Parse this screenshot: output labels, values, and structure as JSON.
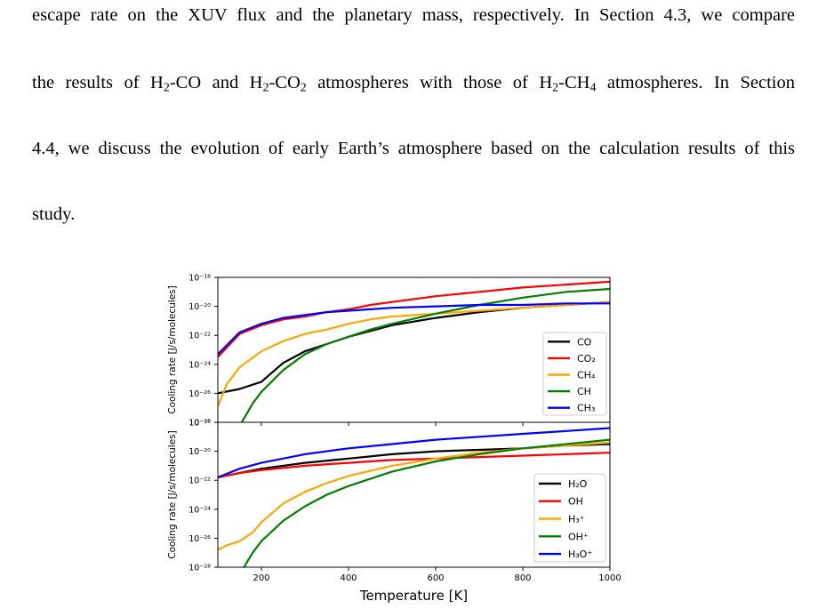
{
  "paragraph": {
    "lines": [
      "escape rate on the XUV flux and the planetary mass, respectively. In Section 4.3, we compare",
      "the results of H<sub>2</sub>-CO and H<sub>2</sub>-CO<sub>2</sub> atmospheres with those of H<sub>2</sub>-CH<sub>4</sub> atmospheres. In Section",
      "4.4, we discuss the evolution of early Earth’s atmosphere based on the calculation results of this",
      "study."
    ]
  },
  "chart_data": [
    {
      "type": "line",
      "panel": "top",
      "xlabel": "",
      "ylabel": "Cooling rate [J/s/molecules]",
      "xlim": [
        100,
        1000
      ],
      "ylim_log10": [
        -28,
        -18
      ],
      "yscale": "log",
      "ytick_labels": [
        "10⁻¹⁸",
        "10⁻²⁰",
        "10⁻²²",
        "10⁻²⁴",
        "10⁻²⁶",
        "10⁻²⁸"
      ],
      "legend_position": "lower-right",
      "series": [
        {
          "name": "CO",
          "color": "#000000",
          "x": [
            100,
            150,
            200,
            250,
            300,
            350,
            400,
            450,
            500,
            600,
            700,
            800,
            900,
            1000
          ],
          "log10_y": [
            -26.0,
            -25.7,
            -25.2,
            -23.9,
            -23.1,
            -22.6,
            -22.1,
            -21.7,
            -21.3,
            -20.8,
            -20.4,
            -20.1,
            -19.9,
            -19.7
          ]
        },
        {
          "name": "CO₂",
          "color": "#ff0000",
          "x": [
            100,
            150,
            200,
            250,
            300,
            350,
            400,
            450,
            500,
            600,
            700,
            800,
            900,
            1000
          ],
          "log10_y": [
            -23.5,
            -21.9,
            -21.3,
            -20.9,
            -20.7,
            -20.4,
            -20.2,
            -19.9,
            -19.7,
            -19.3,
            -19.0,
            -18.7,
            -18.5,
            -18.3
          ]
        },
        {
          "name": "CH₄",
          "color": "#ffa500",
          "x": [
            100,
            120,
            150,
            200,
            250,
            300,
            350,
            400,
            450,
            500,
            600,
            700,
            800,
            900,
            1000
          ],
          "log10_y": [
            -26.9,
            -25.4,
            -24.2,
            -23.1,
            -22.4,
            -21.9,
            -21.6,
            -21.2,
            -20.9,
            -20.7,
            -20.5,
            -20.3,
            -20.1,
            -19.9,
            -19.7
          ]
        },
        {
          "name": "CH",
          "color": "#008000",
          "x": [
            155,
            180,
            200,
            250,
            300,
            350,
            400,
            450,
            500,
            600,
            700,
            800,
            900,
            1000
          ],
          "log10_y": [
            -28.0,
            -26.7,
            -25.9,
            -24.4,
            -23.3,
            -22.6,
            -22.1,
            -21.6,
            -21.2,
            -20.5,
            -19.9,
            -19.4,
            -19.0,
            -18.8
          ]
        },
        {
          "name": "CH₃",
          "color": "#0000ff",
          "x": [
            100,
            150,
            200,
            250,
            300,
            350,
            400,
            450,
            500,
            600,
            700,
            800,
            900,
            1000
          ],
          "log10_y": [
            -23.3,
            -21.8,
            -21.2,
            -20.8,
            -20.6,
            -20.4,
            -20.3,
            -20.2,
            -20.1,
            -20.0,
            -19.9,
            -19.9,
            -19.8,
            -19.8
          ]
        }
      ]
    },
    {
      "type": "line",
      "panel": "bottom",
      "xlabel": "Temperature [K]",
      "ylabel": "Cooling rate [J/s/molecules]",
      "xlim": [
        100,
        1000
      ],
      "xtick_labels": [
        "200",
        "400",
        "600",
        "800",
        "1000"
      ],
      "ylim_log10": [
        -28,
        -18
      ],
      "yscale": "log",
      "ytick_labels": [
        "10⁻¹⁸",
        "10⁻²⁰",
        "10⁻²²",
        "10⁻²⁴",
        "10⁻²⁶",
        "10⁻²⁸"
      ],
      "legend_position": "lower-right",
      "series": [
        {
          "name": "H₂O",
          "color": "#000000",
          "x": [
            100,
            150,
            200,
            300,
            400,
            500,
            600,
            700,
            800,
            900,
            1000
          ],
          "log10_y": [
            -21.8,
            -21.5,
            -21.2,
            -20.8,
            -20.5,
            -20.2,
            -20.0,
            -19.9,
            -19.8,
            -19.6,
            -19.5
          ]
        },
        {
          "name": "OH",
          "color": "#ff0000",
          "x": [
            100,
            150,
            200,
            300,
            400,
            500,
            600,
            700,
            800,
            900,
            1000
          ],
          "log10_y": [
            -21.8,
            -21.5,
            -21.3,
            -21.0,
            -20.8,
            -20.6,
            -20.5,
            -20.4,
            -20.3,
            -20.2,
            -20.1
          ]
        },
        {
          "name": "H₃⁺",
          "color": "#ffa500",
          "x": [
            100,
            120,
            150,
            180,
            200,
            250,
            300,
            350,
            400,
            500,
            600,
            700,
            800,
            900,
            1000
          ],
          "log10_y": [
            -26.8,
            -26.5,
            -26.2,
            -25.6,
            -24.9,
            -23.6,
            -22.8,
            -22.2,
            -21.7,
            -21.0,
            -20.5,
            -20.1,
            -19.8,
            -19.6,
            -19.4
          ]
        },
        {
          "name": "OH⁺",
          "color": "#008000",
          "x": [
            160,
            180,
            200,
            250,
            300,
            350,
            400,
            500,
            600,
            700,
            800,
            900,
            1000
          ],
          "log10_y": [
            -28.0,
            -27.0,
            -26.2,
            -24.8,
            -23.8,
            -23.0,
            -22.4,
            -21.4,
            -20.7,
            -20.2,
            -19.8,
            -19.5,
            -19.2
          ]
        },
        {
          "name": "H₃O⁺",
          "color": "#0000ff",
          "x": [
            100,
            150,
            200,
            300,
            400,
            500,
            600,
            700,
            800,
            900,
            1000
          ],
          "log10_y": [
            -21.8,
            -21.2,
            -20.8,
            -20.2,
            -19.8,
            -19.5,
            -19.2,
            -19.0,
            -18.8,
            -18.6,
            -18.4
          ]
        }
      ]
    }
  ]
}
